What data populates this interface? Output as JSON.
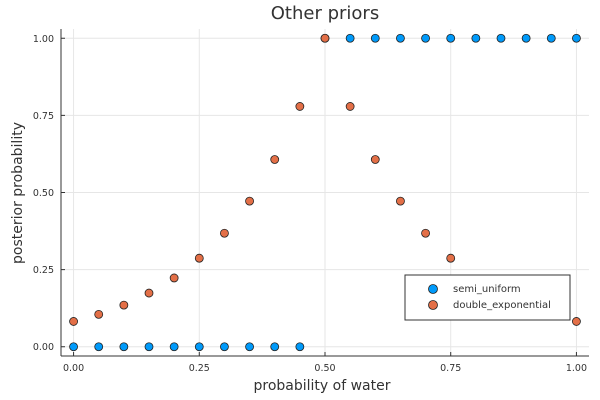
{
  "chart_data": {
    "type": "scatter",
    "title": "Other priors",
    "xlabel": "probability of water",
    "ylabel": "posterior probability",
    "xlim": [
      -0.025,
      1.025
    ],
    "ylim": [
      -0.03,
      1.03
    ],
    "xticks": [
      0.0,
      0.25,
      0.5,
      0.75,
      1.0
    ],
    "xtick_labels": [
      "0.00",
      "0.25",
      "0.50",
      "0.75",
      "1.00"
    ],
    "yticks": [
      0.0,
      0.25,
      0.5,
      0.75,
      1.0
    ],
    "ytick_labels": [
      "0.00",
      "0.25",
      "0.50",
      "0.75",
      "1.00"
    ],
    "grid": true,
    "legend_position": "bottom-right",
    "series": [
      {
        "name": "semi_uniform",
        "color": "#009AFA",
        "x": [
          0.0,
          0.05,
          0.1,
          0.15,
          0.2,
          0.25,
          0.3,
          0.35,
          0.4,
          0.45,
          0.5,
          0.55,
          0.6,
          0.65,
          0.7,
          0.75,
          0.8,
          0.85,
          0.9,
          0.95,
          1.0
        ],
        "y": [
          0,
          0,
          0,
          0,
          0,
          0,
          0,
          0,
          0,
          0,
          1,
          1,
          1,
          1,
          1,
          1,
          1,
          1,
          1,
          1,
          1
        ]
      },
      {
        "name": "double_exponential",
        "color": "#E36F47",
        "x": [
          0.0,
          0.05,
          0.1,
          0.15,
          0.2,
          0.25,
          0.3,
          0.35,
          0.4,
          0.45,
          0.5,
          0.55,
          0.6,
          0.65,
          0.7,
          0.75,
          1.0
        ],
        "y": [
          0.082,
          0.105,
          0.135,
          0.174,
          0.223,
          0.287,
          0.368,
          0.472,
          0.607,
          0.779,
          1.0,
          0.779,
          0.607,
          0.472,
          0.368,
          0.287,
          0.082
        ]
      }
    ]
  }
}
